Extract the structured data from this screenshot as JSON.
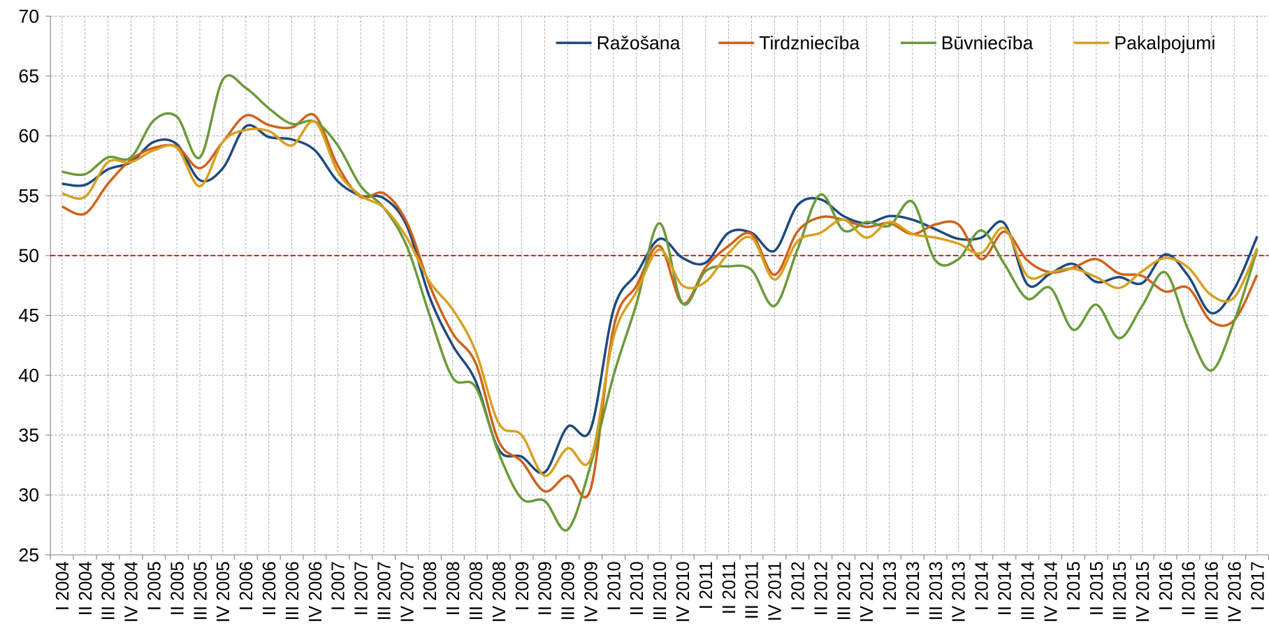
{
  "chart_data": {
    "type": "line",
    "categories": [
      "I 2004",
      "II 2004",
      "III 2004",
      "IV 2004",
      "I 2005",
      "II 2005",
      "III 2005",
      "IV 2005",
      "I 2006",
      "II 2006",
      "III 2006",
      "IV 2006",
      "I 2007",
      "II 2007",
      "III 2007",
      "IV 2007",
      "I 2008",
      "II 2008",
      "III 2008",
      "IV 2008",
      "I 2009",
      "II 2009",
      "III 2009",
      "IV 2009",
      "I 2010",
      "II 2010",
      "III 2010",
      "IV 2010",
      "I 2011",
      "II 2011",
      "III 2011",
      "IV 2011",
      "I 2012",
      "II 2012",
      "III 2012",
      "IV 2012",
      "I 2013",
      "II 2013",
      "III 2013",
      "IV 2013",
      "I 2014",
      "II 2014",
      "III 2014",
      "IV 2014",
      "I 2015",
      "II 2015",
      "III 2015",
      "IV 2015",
      "I 2016",
      "II 2016",
      "III 2016",
      "IV 2016",
      "I 2017"
    ],
    "series": [
      {
        "name": "Ražošana",
        "color": "#1f497d",
        "values": [
          56,
          55.9,
          57.2,
          57.8,
          59.5,
          59.3,
          56.3,
          57.3,
          60.8,
          59.9,
          59.7,
          58.8,
          56.2,
          55,
          54.8,
          52.5,
          46.5,
          42.5,
          39.5,
          33.8,
          33.2,
          31.9,
          35.7,
          35.5,
          45.5,
          48.5,
          51.4,
          49.8,
          49.4,
          51.9,
          51.9,
          50.4,
          54.2,
          54.7,
          53.3,
          52.7,
          53.3,
          53,
          52.2,
          51.4,
          51.5,
          52.7,
          47.6,
          48.5,
          49.3,
          47.8,
          48.2,
          47.7,
          50.1,
          48.3,
          45.2,
          47.2,
          51.6
        ]
      },
      {
        "name": "Tirdzniecība",
        "color": "#d0611b",
        "values": [
          54.1,
          53.5,
          56,
          58,
          59,
          59.1,
          57.3,
          59.5,
          61.7,
          60.9,
          60.7,
          61.7,
          57.5,
          54.9,
          55.2,
          52.8,
          47.5,
          43.5,
          41,
          34.5,
          32.8,
          30.3,
          31.6,
          30.5,
          44,
          47.5,
          50.8,
          46,
          49,
          50.8,
          51.8,
          48.4,
          52,
          53.2,
          53,
          52.4,
          52.7,
          51.8,
          52.6,
          52.6,
          49.7,
          52,
          49.6,
          48.6,
          49,
          49.7,
          48.5,
          48.3,
          47,
          47.3,
          44.5,
          44.6,
          48.4
        ]
      },
      {
        "name": "Būvniecība",
        "color": "#6a9a3a",
        "values": [
          57,
          56.8,
          58.2,
          58.2,
          61.3,
          61.6,
          58.2,
          64.7,
          64,
          62.3,
          61,
          61.2,
          59.2,
          55.8,
          54,
          50.8,
          45,
          39.8,
          39,
          33.5,
          29.7,
          29.5,
          27.1,
          32.5,
          40,
          46,
          52.7,
          46,
          48.7,
          49.1,
          48.8,
          45.8,
          50.5,
          55.1,
          52.1,
          52.8,
          52.5,
          54.5,
          49.6,
          49.7,
          52.1,
          49.3,
          46.4,
          47.3,
          43.8,
          45.9,
          43.1,
          45.8,
          48.6,
          43.8,
          40.4,
          44.5,
          50.5
        ]
      },
      {
        "name": "Pakalpojumi",
        "color": "#d6a020",
        "values": [
          55.2,
          54.9,
          57.8,
          57.8,
          58.8,
          59,
          55.8,
          59.5,
          60.5,
          60.4,
          59.2,
          61.2,
          57,
          55,
          54,
          51.5,
          47.8,
          45.5,
          42,
          36,
          35,
          31.6,
          33.9,
          33,
          43.2,
          47,
          50.5,
          47.5,
          47.8,
          50.2,
          51.5,
          48,
          51.2,
          51.9,
          53,
          51.5,
          52.8,
          51.8,
          51.5,
          51,
          50.2,
          52.3,
          48.3,
          48.6,
          48.9,
          48.2,
          47.3,
          48.7,
          49.8,
          49,
          46.7,
          46.5,
          50.6
        ]
      }
    ],
    "ylim": [
      25,
      70
    ],
    "yticks": [
      25,
      30,
      35,
      40,
      45,
      50,
      55,
      60,
      65,
      70
    ],
    "grid": true,
    "reference_line": {
      "value": 50,
      "color": "#cc0000"
    },
    "legend": "top-right",
    "smooth": true
  }
}
